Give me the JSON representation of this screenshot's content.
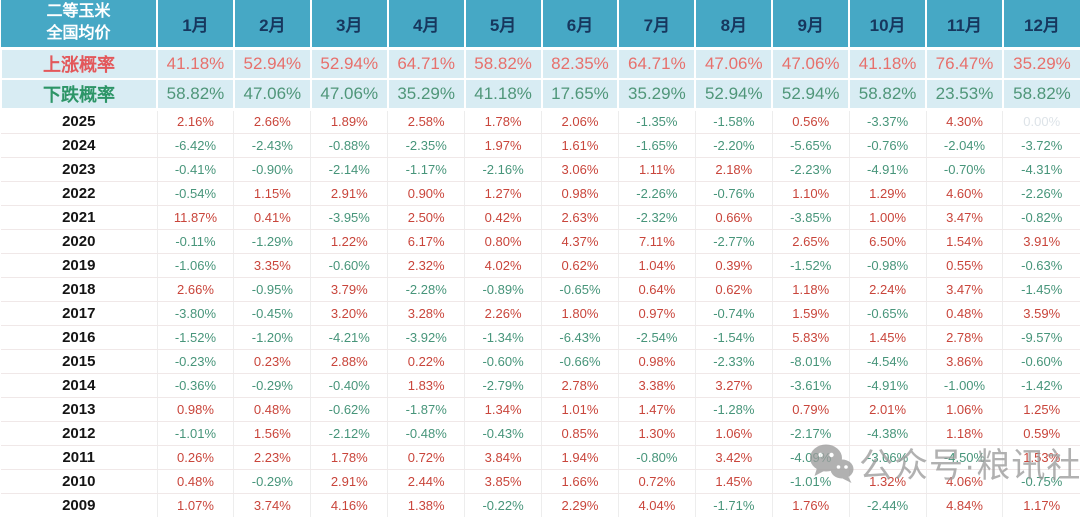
{
  "chart_data": {
    "type": "table",
    "title": "二等玉米全国均价",
    "corner_title_line1": "二等玉米",
    "corner_title_line2": "全国均价",
    "months": [
      "1月",
      "2月",
      "3月",
      "4月",
      "5月",
      "6月",
      "7月",
      "8月",
      "9月",
      "10月",
      "11月",
      "12月"
    ],
    "rise_probability": {
      "label": "上涨概率",
      "values": [
        "41.18%",
        "52.94%",
        "52.94%",
        "64.71%",
        "58.82%",
        "82.35%",
        "64.71%",
        "47.06%",
        "47.06%",
        "41.18%",
        "76.47%",
        "35.29%"
      ]
    },
    "fall_probability": {
      "label": "下跌概率",
      "values": [
        "58.82%",
        "47.06%",
        "47.06%",
        "35.29%",
        "41.18%",
        "17.65%",
        "35.29%",
        "52.94%",
        "52.94%",
        "58.82%",
        "23.53%",
        "58.82%"
      ]
    },
    "year_rows": [
      {
        "year": "2025",
        "values": [
          "2.16%",
          "2.66%",
          "1.89%",
          "2.58%",
          "1.78%",
          "2.06%",
          "-1.35%",
          "-1.58%",
          "0.56%",
          "-3.37%",
          "4.30%",
          "0.00%"
        ]
      },
      {
        "year": "2024",
        "values": [
          "-6.42%",
          "-2.43%",
          "-0.88%",
          "-2.35%",
          "1.97%",
          "1.61%",
          "-1.65%",
          "-2.20%",
          "-5.65%",
          "-0.76%",
          "-2.04%",
          "-3.72%"
        ]
      },
      {
        "year": "2023",
        "values": [
          "-0.41%",
          "-0.90%",
          "-2.14%",
          "-1.17%",
          "-2.16%",
          "3.06%",
          "1.11%",
          "2.18%",
          "-2.23%",
          "-4.91%",
          "-0.70%",
          "-4.31%"
        ]
      },
      {
        "year": "2022",
        "values": [
          "-0.54%",
          "1.15%",
          "2.91%",
          "0.90%",
          "1.27%",
          "0.98%",
          "-2.26%",
          "-0.76%",
          "1.10%",
          "1.29%",
          "4.60%",
          "-2.26%"
        ]
      },
      {
        "year": "2021",
        "values": [
          "11.87%",
          "0.41%",
          "-3.95%",
          "2.50%",
          "0.42%",
          "2.63%",
          "-2.32%",
          "0.66%",
          "-3.85%",
          "1.00%",
          "3.47%",
          "-0.82%"
        ]
      },
      {
        "year": "2020",
        "values": [
          "-0.11%",
          "-1.29%",
          "1.22%",
          "6.17%",
          "0.80%",
          "4.37%",
          "7.11%",
          "-2.77%",
          "2.65%",
          "6.50%",
          "1.54%",
          "3.91%"
        ]
      },
      {
        "year": "2019",
        "values": [
          "-1.06%",
          "3.35%",
          "-0.60%",
          "2.32%",
          "4.02%",
          "0.62%",
          "1.04%",
          "0.39%",
          "-1.52%",
          "-0.98%",
          "0.55%",
          "-0.63%"
        ]
      },
      {
        "year": "2018",
        "values": [
          "2.66%",
          "-0.95%",
          "3.79%",
          "-2.28%",
          "-0.89%",
          "-0.65%",
          "0.64%",
          "0.62%",
          "1.18%",
          "2.24%",
          "3.47%",
          "-1.45%"
        ]
      },
      {
        "year": "2017",
        "values": [
          "-3.80%",
          "-0.45%",
          "3.20%",
          "3.28%",
          "2.26%",
          "1.80%",
          "0.97%",
          "-0.74%",
          "1.59%",
          "-0.65%",
          "0.48%",
          "3.59%"
        ]
      },
      {
        "year": "2016",
        "values": [
          "-1.52%",
          "-1.20%",
          "-4.21%",
          "-3.92%",
          "-1.34%",
          "-6.43%",
          "-2.54%",
          "-1.54%",
          "5.83%",
          "1.45%",
          "2.78%",
          "-9.57%"
        ]
      },
      {
        "year": "2015",
        "values": [
          "-0.23%",
          "0.23%",
          "2.88%",
          "0.22%",
          "-0.60%",
          "-0.66%",
          "0.98%",
          "-2.33%",
          "-8.01%",
          "-4.54%",
          "3.86%",
          "-0.60%"
        ]
      },
      {
        "year": "2014",
        "values": [
          "-0.36%",
          "-0.29%",
          "-0.40%",
          "1.83%",
          "-2.79%",
          "2.78%",
          "3.38%",
          "3.27%",
          "-3.61%",
          "-4.91%",
          "-1.00%",
          "-1.42%"
        ]
      },
      {
        "year": "2013",
        "values": [
          "0.98%",
          "0.48%",
          "-0.62%",
          "-1.87%",
          "1.34%",
          "1.01%",
          "1.47%",
          "-1.28%",
          "0.79%",
          "2.01%",
          "1.06%",
          "1.25%"
        ]
      },
      {
        "year": "2012",
        "values": [
          "-1.01%",
          "1.56%",
          "-2.12%",
          "-0.48%",
          "-0.43%",
          "0.85%",
          "1.30%",
          "1.06%",
          "-2.17%",
          "-4.38%",
          "1.18%",
          "0.59%"
        ]
      },
      {
        "year": "2011",
        "values": [
          "0.26%",
          "2.23%",
          "1.78%",
          "0.72%",
          "3.84%",
          "1.94%",
          "-0.80%",
          "3.42%",
          "-4.09%",
          "-3.06%",
          "-4.50%",
          "1.53%"
        ]
      },
      {
        "year": "2010",
        "values": [
          "0.48%",
          "-0.29%",
          "2.91%",
          "2.44%",
          "3.85%",
          "1.66%",
          "0.72%",
          "1.45%",
          "-1.01%",
          "1.32%",
          "4.06%",
          "-0.75%"
        ]
      },
      {
        "year": "2009",
        "values": [
          "1.07%",
          "3.74%",
          "4.16%",
          "1.38%",
          "-0.22%",
          "2.29%",
          "4.04%",
          "-1.71%",
          "1.76%",
          "-2.44%",
          "4.84%",
          "1.17%"
        ]
      }
    ]
  },
  "watermark": {
    "text": "公众号·粮讯社"
  },
  "colors": {
    "header_bg": "#46A8C5",
    "header_text": "#17375E",
    "prob_row_bg": "#D8ECF3",
    "rise_red": "#E3585B",
    "fall_green": "#2D9567",
    "positive_red": "#C9453B",
    "negative_green": "#47957A",
    "zero_gray": "#DDE3E8"
  }
}
